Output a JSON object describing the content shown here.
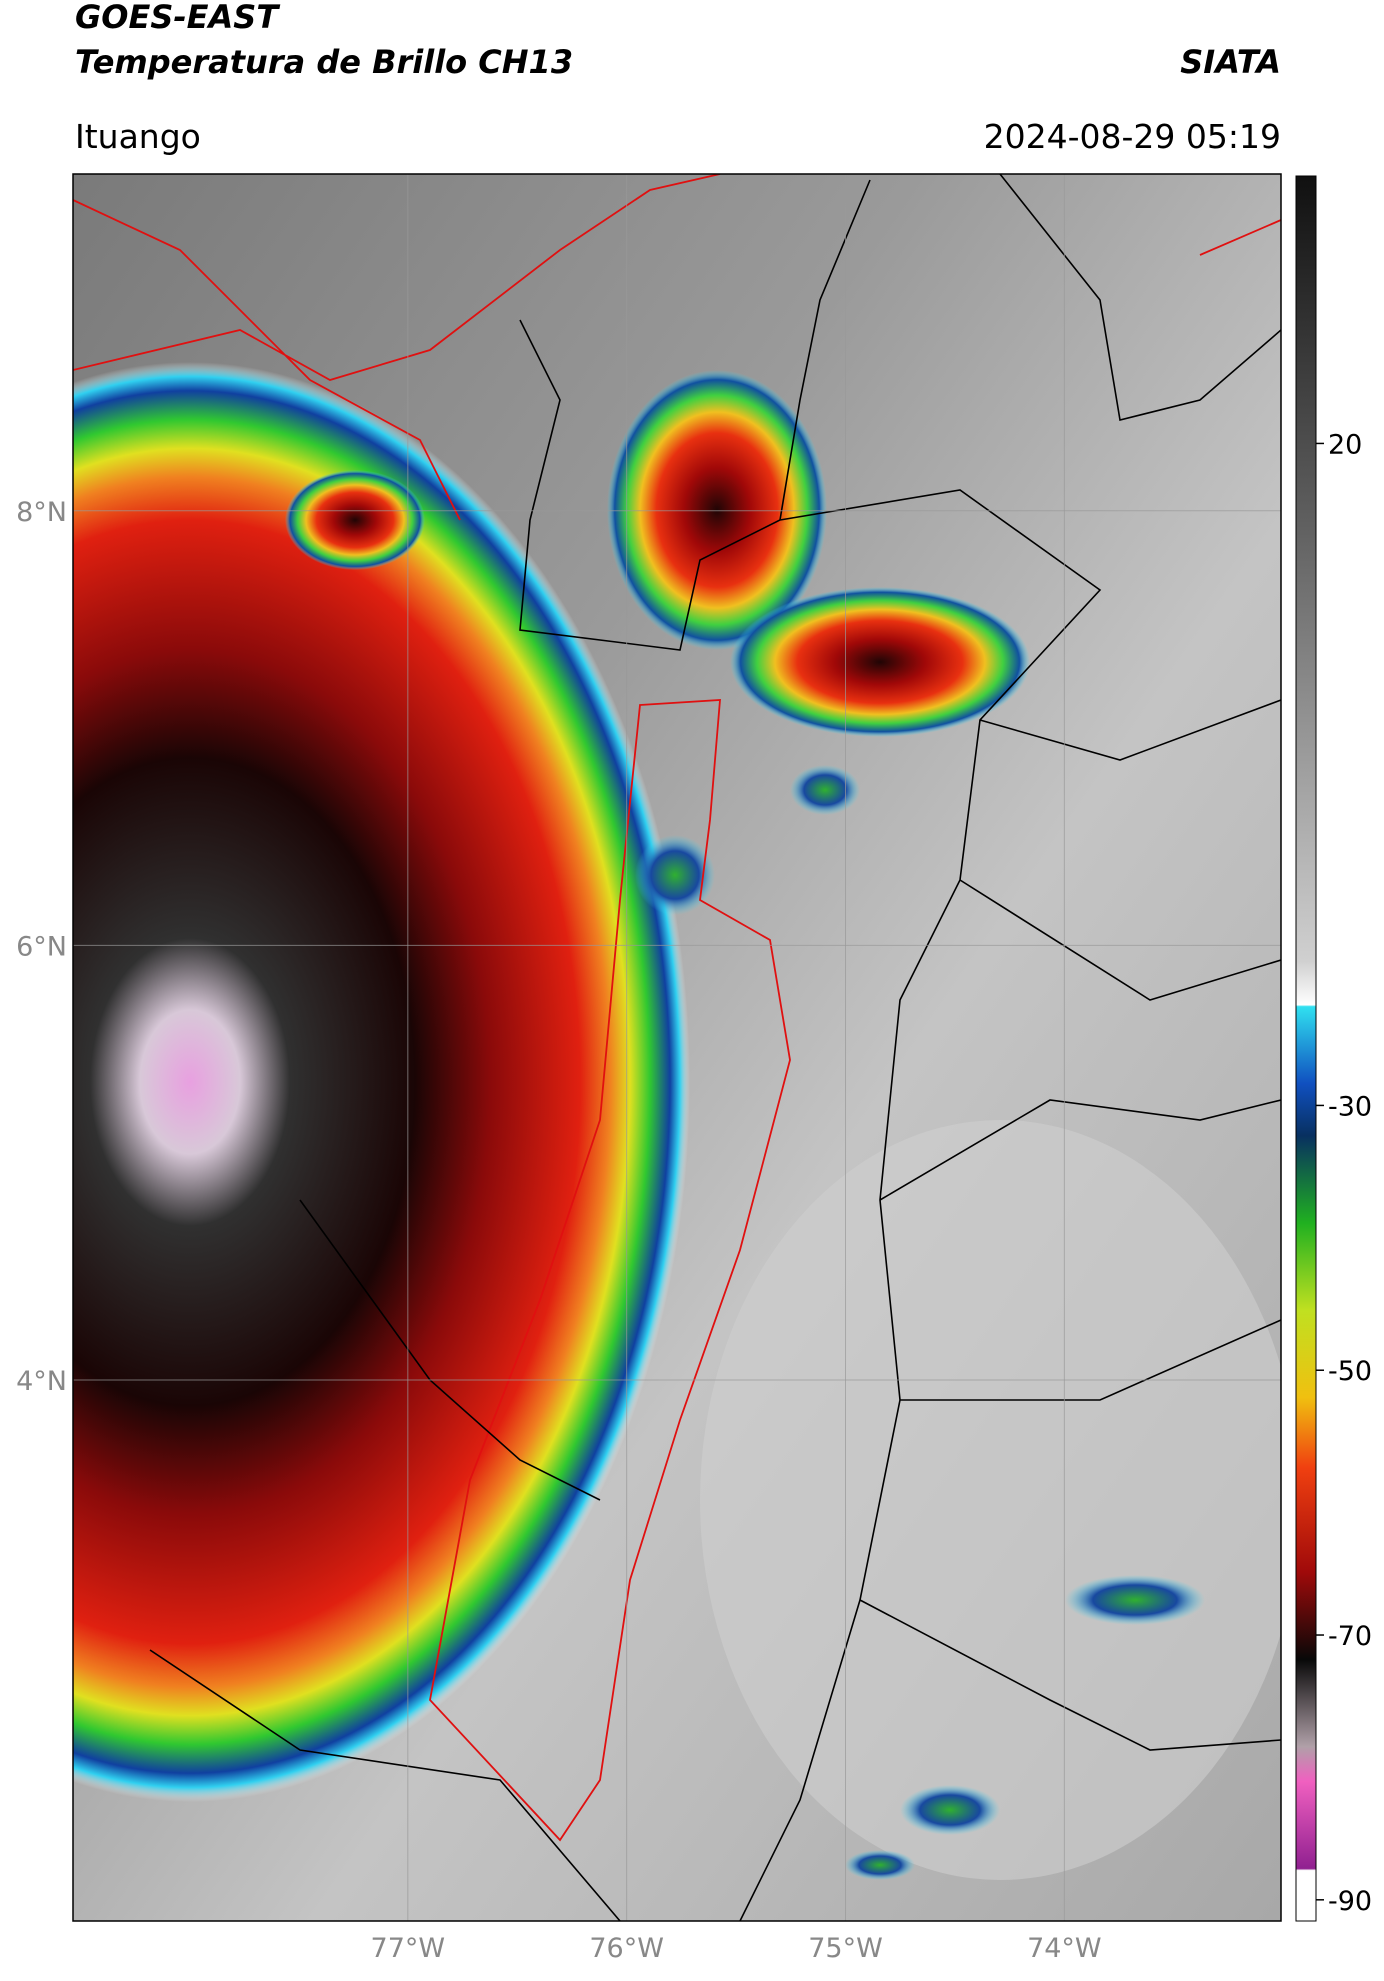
{
  "header": {
    "satellite": "GOES-EAST",
    "product": "Temperatura de Brillo CH13",
    "agency": "SIATA",
    "region": "Ituango",
    "datetime": "2024-08-29 05:19"
  },
  "map": {
    "lon_range": [
      -78.53,
      -73.01
    ],
    "lat_range": [
      1.51,
      9.55
    ],
    "lat_ticks": [
      {
        "value": 8,
        "label": "8°N"
      },
      {
        "value": 6,
        "label": "6°N"
      },
      {
        "value": 4,
        "label": "4°N"
      }
    ],
    "lon_ticks": [
      {
        "value": -77,
        "label": "77°W"
      },
      {
        "value": -76,
        "label": "76°W"
      },
      {
        "value": -75,
        "label": "75°W"
      },
      {
        "value": -74,
        "label": "74°W"
      }
    ]
  },
  "colorbar": {
    "range": [
      -91.6,
      40.2
    ],
    "ticks": [
      20,
      -30,
      -50,
      -70,
      -90
    ]
  }
}
